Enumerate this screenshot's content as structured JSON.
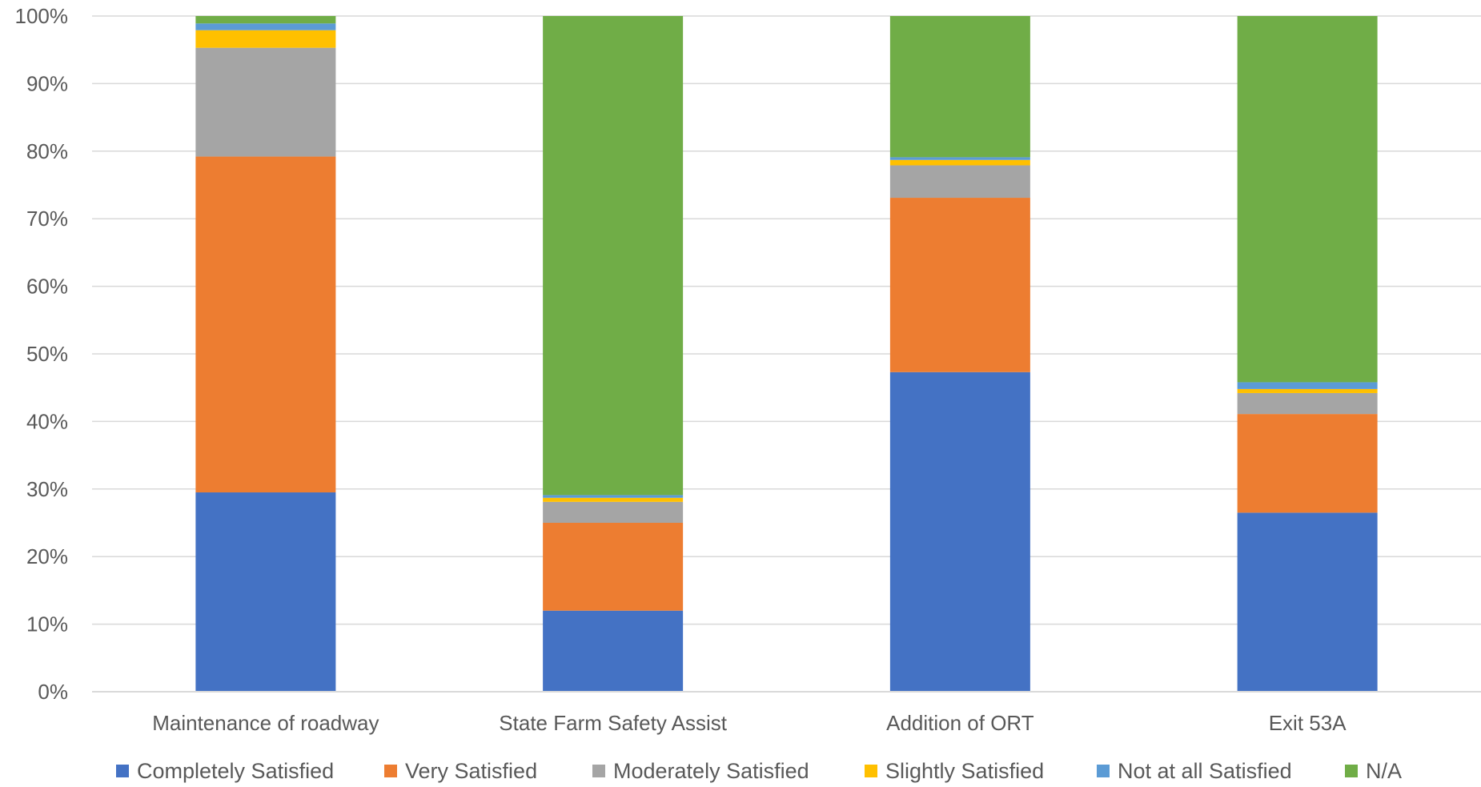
{
  "chart_data": {
    "type": "bar",
    "stacked": true,
    "percent_stacked": true,
    "categories": [
      "Maintenance of roadway",
      "State Farm Safety Assist",
      "Addition of ORT",
      "Exit 53A"
    ],
    "series": [
      {
        "name": "Completely Satisfied",
        "color": "#4472C4",
        "values": [
          29.5,
          12.0,
          47.3,
          26.5
        ]
      },
      {
        "name": "Very Satisfied",
        "color": "#ED7D31",
        "values": [
          49.7,
          13.0,
          25.8,
          14.6
        ]
      },
      {
        "name": "Moderately Satisfied",
        "color": "#A5A5A5",
        "values": [
          16.1,
          3.1,
          4.8,
          3.1
        ]
      },
      {
        "name": "Slightly Satisfied",
        "color": "#FFC000",
        "values": [
          2.6,
          0.6,
          0.8,
          0.6
        ]
      },
      {
        "name": "Not at all Satisfied",
        "color": "#5B9BD5",
        "values": [
          1.0,
          0.4,
          0.4,
          1.0
        ]
      },
      {
        "name": "N/A",
        "color": "#70AD47",
        "values": [
          1.1,
          70.9,
          20.9,
          54.2
        ]
      }
    ],
    "y_ticks": [
      "0%",
      "10%",
      "20%",
      "30%",
      "40%",
      "50%",
      "60%",
      "70%",
      "80%",
      "90%",
      "100%"
    ],
    "ylim": [
      0,
      100
    ],
    "grid": true,
    "legend_position": "bottom"
  }
}
